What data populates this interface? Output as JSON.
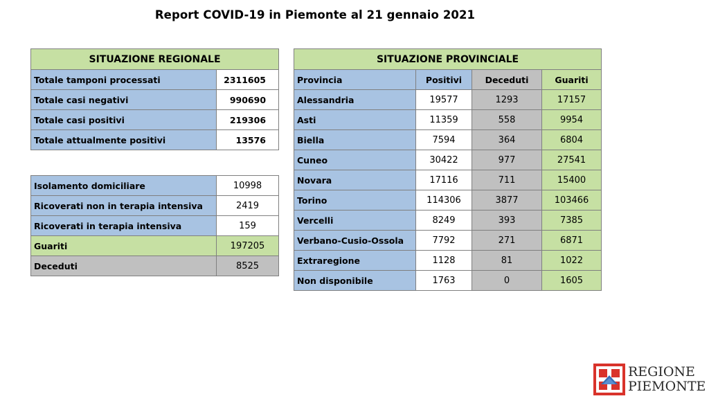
{
  "title": "Report COVID-19 in Piemonte al 21 gennaio 2021",
  "regional": {
    "header": "SITUAZIONE REGIONALE",
    "rows": [
      {
        "label": "Totale tamponi processati",
        "value": "2311605"
      },
      {
        "label": "Totale casi negativi",
        "value": "990690"
      },
      {
        "label": "Totale casi positivi",
        "value": "219306"
      },
      {
        "label": "Totale attualmente positivi",
        "value": "13576"
      }
    ]
  },
  "breakdown": {
    "rows": [
      {
        "label": "Isolamento domiciliare",
        "value": "10998"
      },
      {
        "label": "Ricoverati non in terapia intensiva",
        "value": "2419"
      },
      {
        "label": "Ricoverati in terapia intensiva",
        "value": "159"
      },
      {
        "label": "Guariti",
        "value": "197205"
      },
      {
        "label": "Deceduti",
        "value": "8525"
      }
    ]
  },
  "provincial": {
    "header": "SITUAZIONE PROVINCIALE",
    "columns": [
      "Provincia",
      "Positivi",
      "Deceduti",
      "Guariti"
    ],
    "rows": [
      {
        "provincia": "Alessandria",
        "positivi": "19577",
        "deceduti": "1293",
        "guariti": "17157"
      },
      {
        "provincia": "Asti",
        "positivi": "11359",
        "deceduti": "558",
        "guariti": "9954"
      },
      {
        "provincia": "Biella",
        "positivi": "7594",
        "deceduti": "364",
        "guariti": "6804"
      },
      {
        "provincia": "Cuneo",
        "positivi": "30422",
        "deceduti": "977",
        "guariti": "27541"
      },
      {
        "provincia": "Novara",
        "positivi": "17116",
        "deceduti": "711",
        "guariti": "15400"
      },
      {
        "provincia": "Torino",
        "positivi": "114306",
        "deceduti": "3877",
        "guariti": "103466"
      },
      {
        "provincia": "Vercelli",
        "positivi": "8249",
        "deceduti": "393",
        "guariti": "7385"
      },
      {
        "provincia": "Verbano-Cusio-Ossola",
        "positivi": "7792",
        "deceduti": "271",
        "guariti": "6871"
      },
      {
        "provincia": "Extraregione",
        "positivi": "1128",
        "deceduti": "81",
        "guariti": "1022"
      },
      {
        "provincia": "Non disponibile",
        "positivi": "1763",
        "deceduti": "0",
        "guariti": "1605"
      }
    ]
  },
  "logo": {
    "line1": "REGIONE",
    "line2": "PIEMONTE"
  },
  "colors": {
    "green": "#c6e0a3",
    "blue": "#a8c3e2",
    "gray": "#c0c0c0",
    "logo_red": "#d9332b"
  }
}
